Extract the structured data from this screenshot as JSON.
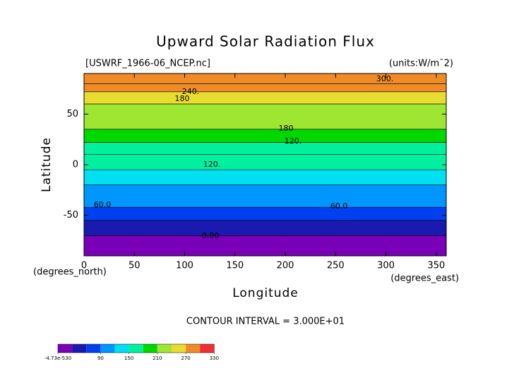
{
  "chart_data": {
    "type": "contour",
    "title": "Upward Solar Radiation Flux",
    "source_label": "[USWRF_1966-06_NCEP.nc]",
    "units_label": "(units:W/m¯2)",
    "x_label": "Longitude",
    "y_label": "Latitude",
    "x_unit_label": "(degrees_east)",
    "y_unit_label": "(degrees_north)",
    "contour_interval_label": "CONTOUR INTERVAL = 3.000E+01",
    "xlim": [
      0,
      360
    ],
    "xticks": [
      0,
      50,
      100,
      150,
      200,
      250,
      300,
      350
    ],
    "ylim": [
      -90,
      90
    ],
    "yticks": [
      -50,
      0,
      50
    ],
    "lat_edges": [
      -90,
      -70,
      -55,
      -42,
      -20,
      -5,
      10,
      22,
      35,
      60,
      72,
      80,
      90
    ],
    "band_values": [
      0,
      45,
      75,
      105,
      135,
      150,
      165,
      195,
      210,
      240,
      270,
      285
    ],
    "contour_labels": [
      "300.",
      "240.",
      "180",
      "180",
      "120.",
      "120.",
      "60.0",
      "60.0",
      "0.00"
    ],
    "levels": [
      0,
      30,
      60,
      90,
      120,
      150,
      180,
      210,
      240,
      270,
      300,
      330
    ],
    "colors": [
      "#7a00b8",
      "#1a1ab0",
      "#0040f0",
      "#0096ff",
      "#00e0f0",
      "#00f0a0",
      "#00d800",
      "#9ee632",
      "#e8dc30",
      "#f08c28",
      "#f03030"
    ],
    "colorbar_lim": [
      0,
      340
    ],
    "colorbar_ticks": [
      {
        "value": 0,
        "label": "-4.73e-530"
      },
      90,
      150,
      210,
      270,
      330
    ]
  }
}
